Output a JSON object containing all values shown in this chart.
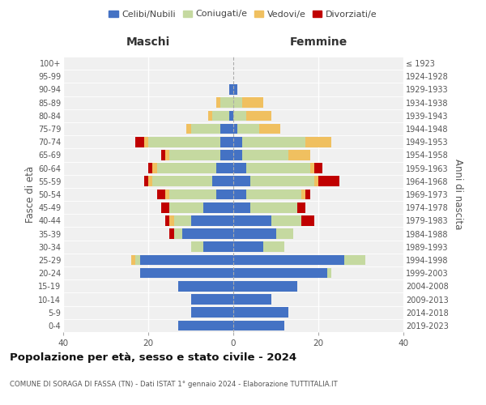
{
  "age_groups": [
    "0-4",
    "5-9",
    "10-14",
    "15-19",
    "20-24",
    "25-29",
    "30-34",
    "35-39",
    "40-44",
    "45-49",
    "50-54",
    "55-59",
    "60-64",
    "65-69",
    "70-74",
    "75-79",
    "80-84",
    "85-89",
    "90-94",
    "95-99",
    "100+"
  ],
  "birth_years": [
    "2019-2023",
    "2014-2018",
    "2009-2013",
    "2004-2008",
    "1999-2003",
    "1994-1998",
    "1989-1993",
    "1984-1988",
    "1979-1983",
    "1974-1978",
    "1969-1973",
    "1964-1968",
    "1959-1963",
    "1954-1958",
    "1949-1953",
    "1944-1948",
    "1939-1943",
    "1934-1938",
    "1929-1933",
    "1924-1928",
    "≤ 1923"
  ],
  "maschi": {
    "celibi": [
      13,
      10,
      10,
      13,
      22,
      22,
      7,
      12,
      10,
      7,
      4,
      5,
      4,
      3,
      3,
      3,
      1,
      0,
      1,
      0,
      0
    ],
    "coniugati": [
      0,
      0,
      0,
      0,
      0,
      1,
      3,
      2,
      4,
      8,
      11,
      14,
      14,
      12,
      17,
      7,
      4,
      3,
      0,
      0,
      0
    ],
    "vedovi": [
      0,
      0,
      0,
      0,
      0,
      1,
      0,
      0,
      1,
      0,
      1,
      1,
      1,
      1,
      1,
      1,
      1,
      1,
      0,
      0,
      0
    ],
    "divorziati": [
      0,
      0,
      0,
      0,
      0,
      0,
      0,
      1,
      1,
      2,
      2,
      1,
      1,
      1,
      2,
      0,
      0,
      0,
      0,
      0,
      0
    ]
  },
  "femmine": {
    "nubili": [
      12,
      13,
      9,
      15,
      22,
      26,
      7,
      10,
      9,
      4,
      3,
      4,
      3,
      2,
      2,
      1,
      0,
      0,
      1,
      0,
      0
    ],
    "coniugate": [
      0,
      0,
      0,
      0,
      1,
      5,
      5,
      4,
      7,
      11,
      13,
      15,
      15,
      11,
      15,
      5,
      3,
      2,
      0,
      0,
      0
    ],
    "vedove": [
      0,
      0,
      0,
      0,
      0,
      0,
      0,
      0,
      0,
      0,
      1,
      1,
      1,
      5,
      6,
      5,
      6,
      5,
      0,
      0,
      0
    ],
    "divorziate": [
      0,
      0,
      0,
      0,
      0,
      0,
      0,
      0,
      3,
      2,
      1,
      5,
      2,
      0,
      0,
      0,
      0,
      0,
      0,
      0,
      0
    ]
  },
  "color_celibi": "#4472c4",
  "color_coniugati": "#c5d9a0",
  "color_vedovi": "#f0c060",
  "color_divorziati": "#c00000",
  "title": "Popolazione per età, sesso e stato civile - 2024",
  "subtitle": "COMUNE DI SORAGA DI FASSA (TN) - Dati ISTAT 1° gennaio 2024 - Elaborazione TUTTITALIA.IT",
  "xlabel_left": "Maschi",
  "xlabel_right": "Femmine",
  "ylabel_left": "Fasce di età",
  "ylabel_right": "Anni di nascita",
  "xlim": 40,
  "bg_color": "#f0f0f0"
}
